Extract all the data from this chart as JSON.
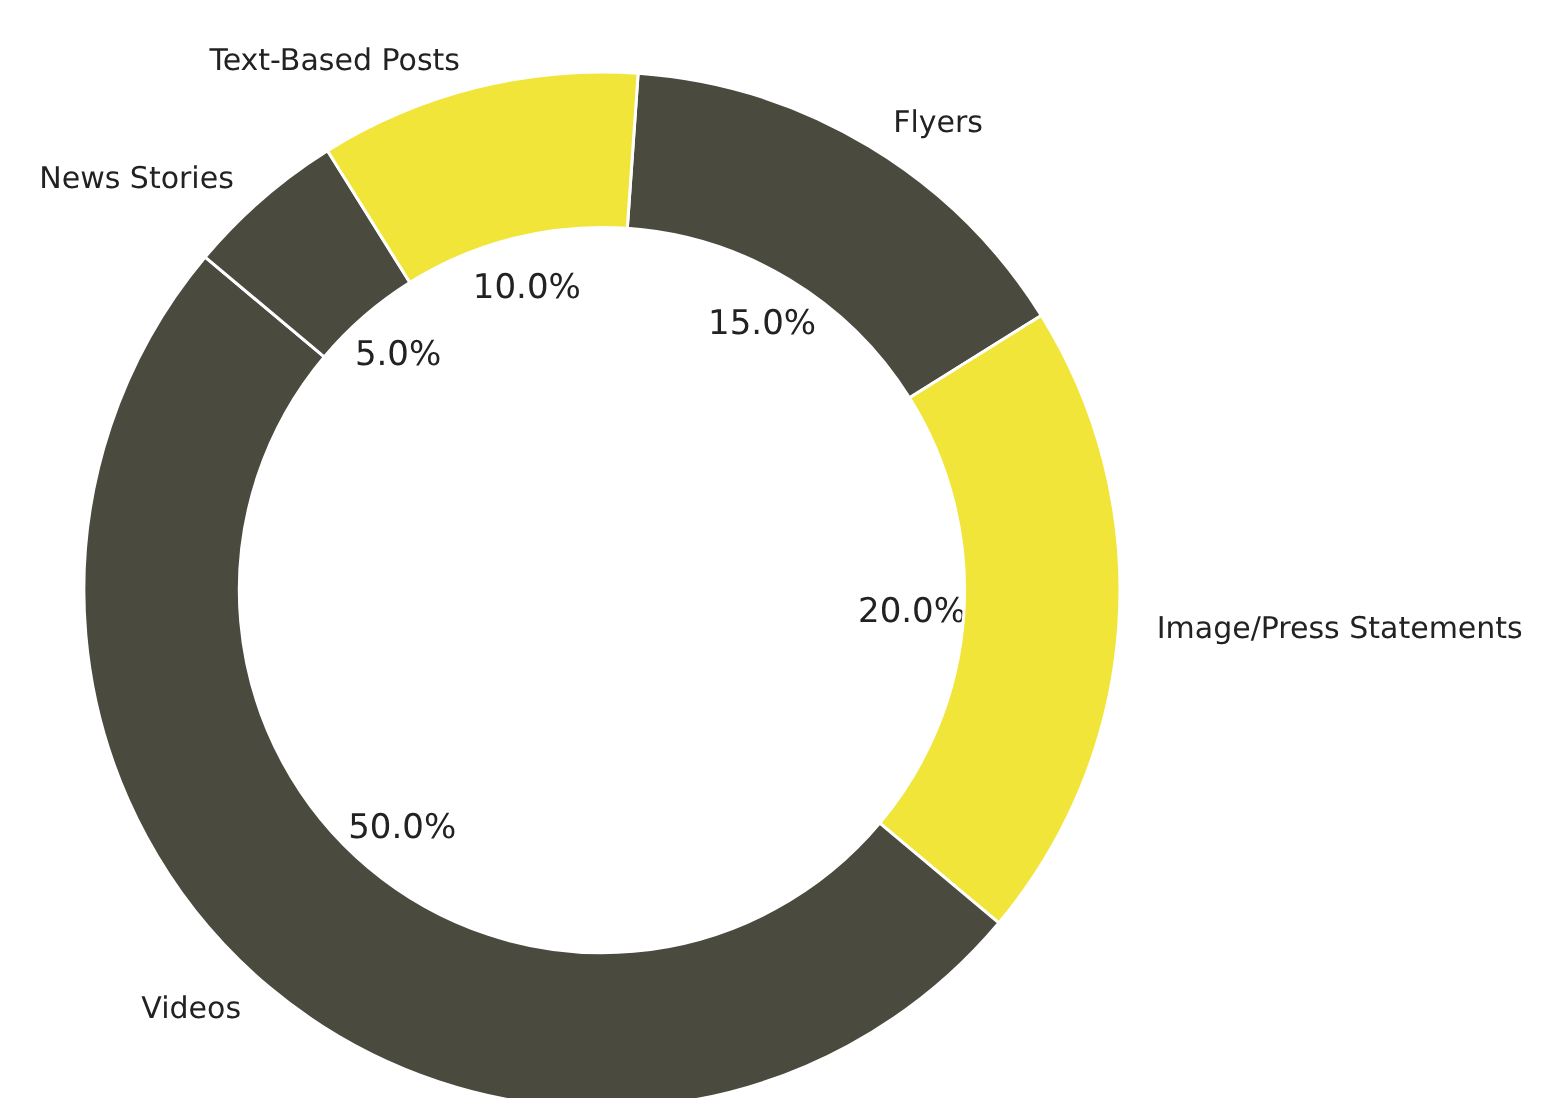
{
  "chart_data": {
    "type": "donut",
    "categories": [
      "Flyers",
      "Image/Press Statements",
      "Videos",
      "News Stories",
      "Text-Based Posts"
    ],
    "values": [
      15,
      20,
      50,
      5,
      10
    ],
    "colors": [
      "#4a4a3e",
      "#f2e53a",
      "#4a4a3e",
      "#4a4a3e",
      "#f2e53a"
    ],
    "value_labels": [
      "15.0%",
      "20.0%",
      "50.0%",
      "5.0%",
      "10.0%"
    ],
    "legend": false
  }
}
